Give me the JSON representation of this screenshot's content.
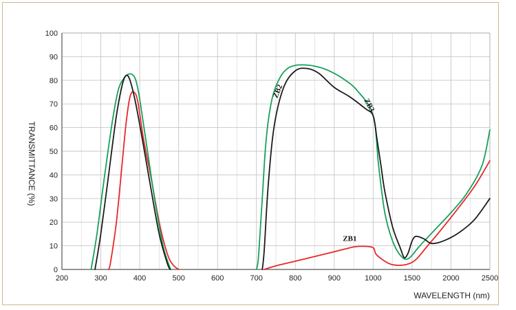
{
  "chart_data": {
    "type": "line",
    "title": "",
    "xlabel": "WAVELENGTH (nm)",
    "ylabel": "TRANSMITTANCE (%)",
    "xtick_labels": [
      "200",
      "300",
      "400",
      "500",
      "600",
      "700",
      "800",
      "900",
      "1000",
      "1500",
      "2000",
      "2500"
    ],
    "ylim": [
      0,
      100
    ],
    "yticks": [
      0,
      10,
      20,
      30,
      40,
      50,
      60,
      70,
      80,
      90,
      100
    ],
    "grid": true,
    "colors": {
      "ZB1": "#e8262a",
      "ZB2": "#16a05a",
      "ZB3": "#1a1a1a"
    },
    "series": [
      {
        "name": "ZB1",
        "label": "ZB1",
        "segments": [
          [
            [
              320,
              0
            ],
            [
              325,
              3
            ],
            [
              340,
              20
            ],
            [
              355,
              45
            ],
            [
              365,
              62
            ],
            [
              375,
              73
            ],
            [
              385,
              75
            ],
            [
              395,
              71
            ],
            [
              410,
              55
            ],
            [
              430,
              38
            ],
            [
              450,
              20
            ],
            [
              470,
              7
            ],
            [
              485,
              2
            ],
            [
              500,
              0
            ]
          ],
          [
            [
              720,
              0
            ],
            [
              750,
              1.5
            ],
            [
              800,
              3.5
            ],
            [
              850,
              5.5
            ],
            [
              900,
              7.5
            ],
            [
              950,
              9.5
            ],
            [
              975,
              9.8
            ],
            [
              1000,
              9.2
            ],
            [
              1050,
              6
            ],
            [
              1250,
              2
            ],
            [
              1500,
              3
            ],
            [
              1700,
              10
            ],
            [
              2000,
              22
            ],
            [
              2300,
              35
            ],
            [
              2500,
              46
            ]
          ]
        ]
      },
      {
        "name": "ZB2",
        "label": "ZB2",
        "segments": [
          [
            [
              275,
              0
            ],
            [
              290,
              15
            ],
            [
              310,
              40
            ],
            [
              330,
              63
            ],
            [
              345,
              76
            ],
            [
              360,
              81
            ],
            [
              370,
              82.5
            ],
            [
              380,
              82.5
            ],
            [
              390,
              80
            ],
            [
              400,
              72
            ],
            [
              420,
              50
            ],
            [
              440,
              28
            ],
            [
              460,
              10
            ],
            [
              475,
              2
            ],
            [
              480,
              0
            ]
          ],
          [
            [
              700,
              0
            ],
            [
              705,
              5
            ],
            [
              715,
              30
            ],
            [
              725,
              55
            ],
            [
              740,
              72
            ],
            [
              760,
              81
            ],
            [
              780,
              85
            ],
            [
              800,
              86.3
            ],
            [
              820,
              86.5
            ],
            [
              850,
              86
            ],
            [
              880,
              84.5
            ],
            [
              920,
              81
            ],
            [
              960,
              75.5
            ],
            [
              1000,
              65
            ],
            [
              1070,
              44
            ],
            [
              1150,
              24
            ],
            [
              1250,
              12
            ],
            [
              1350,
              6
            ],
            [
              1450,
              4.5
            ],
            [
              1600,
              10
            ],
            [
              1800,
              17
            ],
            [
              2000,
              24
            ],
            [
              2200,
              32
            ],
            [
              2400,
              44
            ],
            [
              2500,
              59
            ]
          ]
        ]
      },
      {
        "name": "ZB3",
        "label": "ZB3",
        "segments": [
          [
            [
              285,
              0
            ],
            [
              300,
              15
            ],
            [
              320,
              40
            ],
            [
              340,
              65
            ],
            [
              355,
              78
            ],
            [
              365,
              82
            ],
            [
              375,
              80
            ],
            [
              390,
              70
            ],
            [
              410,
              52
            ],
            [
              430,
              33
            ],
            [
              450,
              15
            ],
            [
              470,
              3
            ],
            [
              478,
              0
            ]
          ],
          [
            [
              715,
              0
            ],
            [
              720,
              8
            ],
            [
              730,
              35
            ],
            [
              745,
              60
            ],
            [
              770,
              77
            ],
            [
              800,
              84
            ],
            [
              830,
              85
            ],
            [
              860,
              83
            ],
            [
              900,
              77
            ],
            [
              940,
              73
            ],
            [
              980,
              68
            ],
            [
              1000,
              65
            ],
            [
              1050,
              55
            ],
            [
              1100,
              44
            ],
            [
              1150,
              33
            ],
            [
              1250,
              18
            ],
            [
              1350,
              9
            ],
            [
              1400,
              5
            ],
            [
              1450,
              7
            ],
            [
              1500,
              12
            ],
            [
              1550,
              14
            ],
            [
              1650,
              13
            ],
            [
              1750,
              11
            ],
            [
              1900,
              12
            ],
            [
              2100,
              15.5
            ],
            [
              2300,
              21
            ],
            [
              2500,
              30
            ]
          ]
        ]
      }
    ]
  }
}
